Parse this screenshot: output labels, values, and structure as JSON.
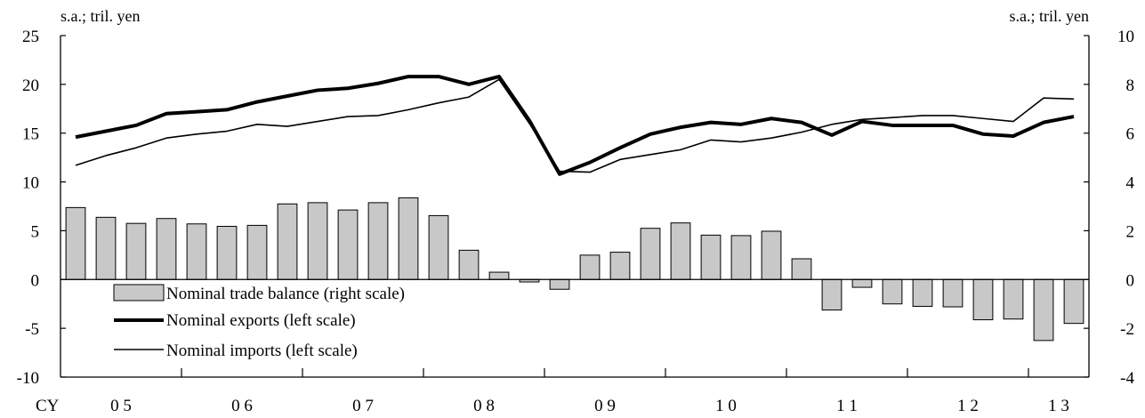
{
  "chart_data": {
    "type": "bar+line",
    "left_unit": "s.a.; tril. yen",
    "right_unit": "s.a.; tril. yen",
    "left_ylim": [
      -10,
      25
    ],
    "right_ylim": [
      -4,
      10
    ],
    "left_ticks": [
      "25",
      "20",
      "15",
      "10",
      "5",
      "0",
      "-5",
      "-10"
    ],
    "right_ticks": [
      "10",
      "8",
      "6",
      "4",
      "2",
      "0",
      "-2",
      "-4"
    ],
    "x_prefix": "CY",
    "year_labels": [
      "0 5",
      "0 6",
      "0 7",
      "0 8",
      "0 9",
      "1 0",
      "1 1",
      "1 2",
      "1 3"
    ],
    "series": [
      {
        "name": "Nominal trade balance (right scale)",
        "axis": "right",
        "kind": "bar",
        "values": [
          2.95,
          2.55,
          2.3,
          2.5,
          2.28,
          2.18,
          2.22,
          3.1,
          3.15,
          2.85,
          3.15,
          3.35,
          2.62,
          1.2,
          0.3,
          -0.1,
          -0.4,
          1.0,
          1.12,
          2.1,
          2.32,
          1.82,
          1.8,
          1.98,
          0.85,
          -1.25,
          -0.32,
          -1.0,
          -1.1,
          -1.12,
          -1.65,
          -1.62,
          -2.5,
          -1.8
        ]
      },
      {
        "name": "Nominal exports (left scale)",
        "axis": "left",
        "kind": "line",
        "values": [
          14.6,
          15.2,
          15.8,
          17.0,
          17.2,
          17.4,
          18.2,
          18.8,
          19.4,
          19.6,
          20.1,
          20.8,
          20.8,
          20.0,
          20.8,
          16.3,
          10.8,
          12.0,
          13.5,
          14.9,
          15.6,
          16.1,
          15.9,
          16.5,
          16.1,
          14.8,
          16.2,
          15.8,
          15.8,
          15.8,
          14.9,
          14.7,
          16.1,
          16.7
        ]
      },
      {
        "name": "Nominal imports (left scale)",
        "axis": "left",
        "kind": "line",
        "values": [
          11.7,
          12.7,
          13.5,
          14.5,
          14.9,
          15.2,
          15.9,
          15.7,
          16.2,
          16.7,
          16.8,
          17.4,
          18.1,
          18.7,
          20.5,
          16.0,
          11.1,
          11.0,
          12.3,
          12.8,
          13.3,
          14.3,
          14.1,
          14.5,
          15.1,
          15.9,
          16.4,
          16.6,
          16.8,
          16.8,
          16.5,
          16.2,
          18.6,
          18.5
        ]
      }
    ],
    "grid": false,
    "legend_position": "lower-left"
  }
}
